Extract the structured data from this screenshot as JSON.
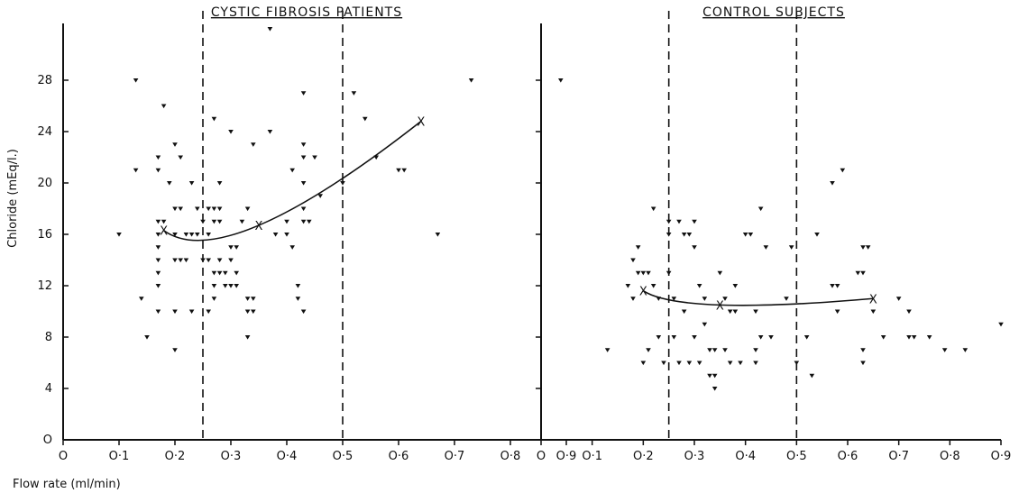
{
  "chart_data": [
    {
      "type": "scatter",
      "title": "CYSTIC FIBROSIS PATIENTS",
      "xlabel": "Flow rate (ml/min)",
      "ylabel": "Chloride (mEq/l.)",
      "xlim": [
        0,
        0.9
      ],
      "ylim": [
        0,
        32
      ],
      "x_ticks": [
        0,
        0.1,
        0.2,
        0.3,
        0.4,
        0.5,
        0.6,
        0.7,
        0.8,
        0.9
      ],
      "x_tick_labels": [
        "O",
        "O·1",
        "O·2",
        "O·3",
        "O·4",
        "O·5",
        "O·6",
        "O·7",
        "O·8",
        "O·9"
      ],
      "y_ticks": [
        0,
        4,
        8,
        12,
        16,
        20,
        24,
        28
      ],
      "y_tick_labels": [
        "O",
        "4",
        "8",
        "12",
        "16",
        "20",
        "24",
        "28"
      ],
      "vlines": [
        0.25,
        0.5
      ],
      "grid": false,
      "trend_markers": [
        {
          "x": 0.18,
          "y": 16.3
        },
        {
          "x": 0.35,
          "y": 16.7
        },
        {
          "x": 0.64,
          "y": 24.8
        }
      ],
      "points": [
        {
          "x": 0.1,
          "y": 16
        },
        {
          "x": 0.13,
          "y": 28
        },
        {
          "x": 0.13,
          "y": 21
        },
        {
          "x": 0.14,
          "y": 11
        },
        {
          "x": 0.15,
          "y": 8
        },
        {
          "x": 0.17,
          "y": 22
        },
        {
          "x": 0.17,
          "y": 21
        },
        {
          "x": 0.17,
          "y": 17
        },
        {
          "x": 0.17,
          "y": 16
        },
        {
          "x": 0.17,
          "y": 15
        },
        {
          "x": 0.17,
          "y": 14
        },
        {
          "x": 0.17,
          "y": 13
        },
        {
          "x": 0.17,
          "y": 12
        },
        {
          "x": 0.17,
          "y": 10
        },
        {
          "x": 0.18,
          "y": 26
        },
        {
          "x": 0.18,
          "y": 17
        },
        {
          "x": 0.19,
          "y": 20
        },
        {
          "x": 0.2,
          "y": 23
        },
        {
          "x": 0.2,
          "y": 18
        },
        {
          "x": 0.2,
          "y": 16
        },
        {
          "x": 0.2,
          "y": 14
        },
        {
          "x": 0.2,
          "y": 10
        },
        {
          "x": 0.2,
          "y": 7
        },
        {
          "x": 0.21,
          "y": 22
        },
        {
          "x": 0.21,
          "y": 18
        },
        {
          "x": 0.21,
          "y": 14
        },
        {
          "x": 0.22,
          "y": 16
        },
        {
          "x": 0.22,
          "y": 14
        },
        {
          "x": 0.23,
          "y": 16
        },
        {
          "x": 0.23,
          "y": 10
        },
        {
          "x": 0.23,
          "y": 20
        },
        {
          "x": 0.24,
          "y": 18
        },
        {
          "x": 0.24,
          "y": 16
        },
        {
          "x": 0.25,
          "y": 17
        },
        {
          "x": 0.25,
          "y": 14
        },
        {
          "x": 0.26,
          "y": 18
        },
        {
          "x": 0.26,
          "y": 16
        },
        {
          "x": 0.26,
          "y": 14
        },
        {
          "x": 0.26,
          "y": 10
        },
        {
          "x": 0.27,
          "y": 25
        },
        {
          "x": 0.27,
          "y": 18
        },
        {
          "x": 0.27,
          "y": 17
        },
        {
          "x": 0.27,
          "y": 13
        },
        {
          "x": 0.27,
          "y": 12
        },
        {
          "x": 0.27,
          "y": 11
        },
        {
          "x": 0.28,
          "y": 20
        },
        {
          "x": 0.28,
          "y": 18
        },
        {
          "x": 0.28,
          "y": 17
        },
        {
          "x": 0.28,
          "y": 14
        },
        {
          "x": 0.28,
          "y": 13
        },
        {
          "x": 0.29,
          "y": 13
        },
        {
          "x": 0.29,
          "y": 12
        },
        {
          "x": 0.3,
          "y": 24
        },
        {
          "x": 0.3,
          "y": 15
        },
        {
          "x": 0.3,
          "y": 14
        },
        {
          "x": 0.3,
          "y": 12
        },
        {
          "x": 0.31,
          "y": 15
        },
        {
          "x": 0.31,
          "y": 13
        },
        {
          "x": 0.31,
          "y": 12
        },
        {
          "x": 0.32,
          "y": 17
        },
        {
          "x": 0.33,
          "y": 18
        },
        {
          "x": 0.33,
          "y": 11
        },
        {
          "x": 0.33,
          "y": 10
        },
        {
          "x": 0.33,
          "y": 8
        },
        {
          "x": 0.34,
          "y": 23
        },
        {
          "x": 0.34,
          "y": 11
        },
        {
          "x": 0.34,
          "y": 10
        },
        {
          "x": 0.37,
          "y": 32
        },
        {
          "x": 0.37,
          "y": 24
        },
        {
          "x": 0.38,
          "y": 16
        },
        {
          "x": 0.4,
          "y": 17
        },
        {
          "x": 0.4,
          "y": 16
        },
        {
          "x": 0.41,
          "y": 21
        },
        {
          "x": 0.41,
          "y": 15
        },
        {
          "x": 0.42,
          "y": 11
        },
        {
          "x": 0.42,
          "y": 12
        },
        {
          "x": 0.43,
          "y": 27
        },
        {
          "x": 0.43,
          "y": 23
        },
        {
          "x": 0.43,
          "y": 22
        },
        {
          "x": 0.43,
          "y": 20
        },
        {
          "x": 0.43,
          "y": 18
        },
        {
          "x": 0.43,
          "y": 17
        },
        {
          "x": 0.43,
          "y": 10
        },
        {
          "x": 0.44,
          "y": 17
        },
        {
          "x": 0.45,
          "y": 22
        },
        {
          "x": 0.46,
          "y": 19
        },
        {
          "x": 0.5,
          "y": 20
        },
        {
          "x": 0.52,
          "y": 27
        },
        {
          "x": 0.54,
          "y": 25
        },
        {
          "x": 0.56,
          "y": 22
        },
        {
          "x": 0.6,
          "y": 21
        },
        {
          "x": 0.61,
          "y": 21
        },
        {
          "x": 0.67,
          "y": 16
        },
        {
          "x": 0.73,
          "y": 28
        },
        {
          "x": 0.89,
          "y": 28
        }
      ]
    },
    {
      "type": "scatter",
      "title": "CONTROL SUBJECTS",
      "xlabel": "",
      "ylabel": "",
      "xlim": [
        0,
        0.9
      ],
      "ylim": [
        0,
        32
      ],
      "x_ticks": [
        0,
        0.1,
        0.2,
        0.3,
        0.4,
        0.5,
        0.6,
        0.7,
        0.8,
        0.9
      ],
      "x_tick_labels": [
        "O",
        "O·1",
        "O·2",
        "O·3",
        "O·4",
        "O·5",
        "O·6",
        "O·7",
        "O·8",
        "O·9"
      ],
      "y_ticks": [
        0,
        4,
        8,
        12,
        16,
        20,
        24,
        28
      ],
      "vlines": [
        0.25,
        0.5
      ],
      "grid": false,
      "trend_markers": [
        {
          "x": 0.2,
          "y": 11.6
        },
        {
          "x": 0.35,
          "y": 10.5
        },
        {
          "x": 0.65,
          "y": 11.0
        }
      ],
      "points": [
        {
          "x": 0.13,
          "y": 7
        },
        {
          "x": 0.17,
          "y": 12
        },
        {
          "x": 0.18,
          "y": 14
        },
        {
          "x": 0.18,
          "y": 11
        },
        {
          "x": 0.19,
          "y": 15
        },
        {
          "x": 0.19,
          "y": 13
        },
        {
          "x": 0.2,
          "y": 13
        },
        {
          "x": 0.2,
          "y": 6
        },
        {
          "x": 0.21,
          "y": 7
        },
        {
          "x": 0.21,
          "y": 13
        },
        {
          "x": 0.22,
          "y": 18
        },
        {
          "x": 0.22,
          "y": 12
        },
        {
          "x": 0.23,
          "y": 11
        },
        {
          "x": 0.23,
          "y": 8
        },
        {
          "x": 0.24,
          "y": 6
        },
        {
          "x": 0.25,
          "y": 17
        },
        {
          "x": 0.25,
          "y": 16
        },
        {
          "x": 0.25,
          "y": 13
        },
        {
          "x": 0.26,
          "y": 11
        },
        {
          "x": 0.26,
          "y": 8
        },
        {
          "x": 0.27,
          "y": 17
        },
        {
          "x": 0.27,
          "y": 6
        },
        {
          "x": 0.28,
          "y": 16
        },
        {
          "x": 0.28,
          "y": 10
        },
        {
          "x": 0.29,
          "y": 6
        },
        {
          "x": 0.29,
          "y": 16
        },
        {
          "x": 0.3,
          "y": 17
        },
        {
          "x": 0.3,
          "y": 15
        },
        {
          "x": 0.3,
          "y": 8
        },
        {
          "x": 0.31,
          "y": 6
        },
        {
          "x": 0.31,
          "y": 12
        },
        {
          "x": 0.32,
          "y": 11
        },
        {
          "x": 0.32,
          "y": 9
        },
        {
          "x": 0.33,
          "y": 7
        },
        {
          "x": 0.33,
          "y": 5
        },
        {
          "x": 0.34,
          "y": 5
        },
        {
          "x": 0.34,
          "y": 4
        },
        {
          "x": 0.34,
          "y": 7
        },
        {
          "x": 0.35,
          "y": 13
        },
        {
          "x": 0.36,
          "y": 11
        },
        {
          "x": 0.36,
          "y": 7
        },
        {
          "x": 0.37,
          "y": 10
        },
        {
          "x": 0.37,
          "y": 6
        },
        {
          "x": 0.38,
          "y": 12
        },
        {
          "x": 0.38,
          "y": 10
        },
        {
          "x": 0.39,
          "y": 6
        },
        {
          "x": 0.4,
          "y": 16
        },
        {
          "x": 0.41,
          "y": 16
        },
        {
          "x": 0.42,
          "y": 10
        },
        {
          "x": 0.42,
          "y": 7
        },
        {
          "x": 0.42,
          "y": 6
        },
        {
          "x": 0.43,
          "y": 18
        },
        {
          "x": 0.43,
          "y": 8
        },
        {
          "x": 0.44,
          "y": 15
        },
        {
          "x": 0.45,
          "y": 8
        },
        {
          "x": 0.48,
          "y": 11
        },
        {
          "x": 0.49,
          "y": 15
        },
        {
          "x": 0.5,
          "y": 6
        },
        {
          "x": 0.52,
          "y": 8
        },
        {
          "x": 0.53,
          "y": 5
        },
        {
          "x": 0.54,
          "y": 16
        },
        {
          "x": 0.57,
          "y": 20
        },
        {
          "x": 0.57,
          "y": 12
        },
        {
          "x": 0.58,
          "y": 12
        },
        {
          "x": 0.58,
          "y": 10
        },
        {
          "x": 0.59,
          "y": 21
        },
        {
          "x": 0.62,
          "y": 13
        },
        {
          "x": 0.63,
          "y": 15
        },
        {
          "x": 0.63,
          "y": 13
        },
        {
          "x": 0.63,
          "y": 7
        },
        {
          "x": 0.63,
          "y": 6
        },
        {
          "x": 0.64,
          "y": 15
        },
        {
          "x": 0.65,
          "y": 10
        },
        {
          "x": 0.67,
          "y": 8
        },
        {
          "x": 0.7,
          "y": 11
        },
        {
          "x": 0.72,
          "y": 10
        },
        {
          "x": 0.72,
          "y": 8
        },
        {
          "x": 0.73,
          "y": 8
        },
        {
          "x": 0.76,
          "y": 8
        },
        {
          "x": 0.79,
          "y": 7
        },
        {
          "x": 0.83,
          "y": 7
        },
        {
          "x": 0.9,
          "y": 9
        }
      ]
    }
  ]
}
